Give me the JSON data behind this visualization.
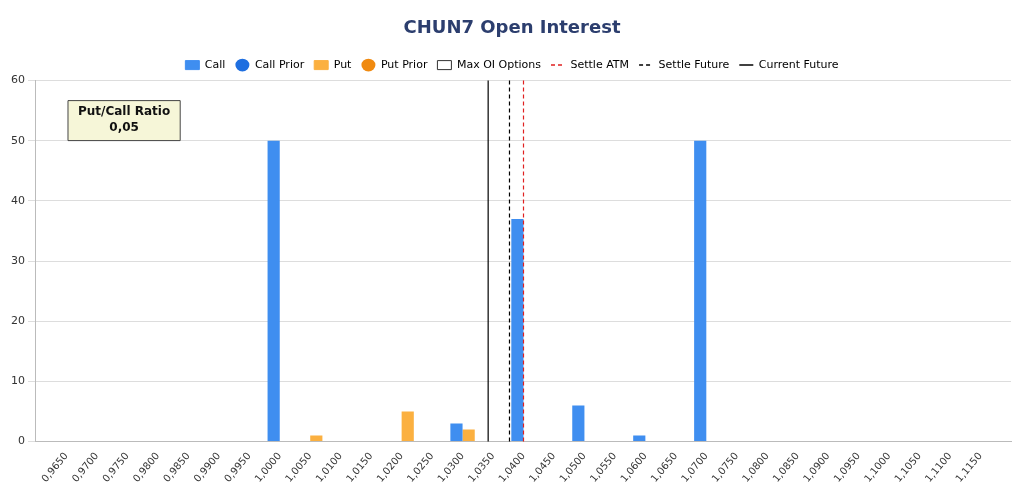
{
  "chart_data": {
    "type": "bar",
    "title": "CHUN7 Open Interest",
    "x": [
      0.965,
      0.97,
      0.975,
      0.98,
      0.985,
      0.99,
      0.995,
      1.0,
      1.005,
      1.01,
      1.015,
      1.02,
      1.025,
      1.03,
      1.035,
      1.04,
      1.045,
      1.05,
      1.055,
      1.06,
      1.065,
      1.07,
      1.075,
      1.08,
      1.085,
      1.09,
      1.095,
      1.1,
      1.105,
      1.11,
      1.115
    ],
    "series": [
      {
        "name": "Call",
        "color": "#3f8ef0",
        "values": [
          0,
          0,
          0,
          0,
          0,
          0,
          0,
          50,
          0,
          0,
          0,
          0,
          0,
          3,
          0,
          37,
          0,
          6,
          0,
          1,
          0,
          50,
          0,
          0,
          0,
          0,
          0,
          0,
          0,
          0,
          0
        ]
      },
      {
        "name": "Call Prior",
        "type": "scatter",
        "color": "#1f6fe0",
        "values": [
          null,
          null,
          null,
          null,
          null,
          null,
          null,
          null,
          null,
          null,
          null,
          null,
          null,
          null,
          null,
          null,
          null,
          null,
          null,
          null,
          null,
          null,
          null,
          null,
          null,
          null,
          null,
          null,
          null,
          null,
          null
        ]
      },
      {
        "name": "Put",
        "color": "#fbb040",
        "values": [
          0,
          0,
          0,
          0,
          0,
          0,
          0,
          0,
          1,
          0,
          0,
          5,
          0,
          2,
          0,
          0,
          0,
          0,
          0,
          0,
          0,
          0,
          0,
          0,
          0,
          0,
          0,
          0,
          0,
          0,
          0
        ]
      },
      {
        "name": "Put Prior",
        "type": "scatter",
        "color": "#f08a10",
        "values": [
          null,
          null,
          null,
          null,
          null,
          null,
          null,
          null,
          null,
          null,
          null,
          null,
          null,
          null,
          null,
          null,
          null,
          null,
          null,
          null,
          null,
          null,
          null,
          null,
          null,
          null,
          null,
          null,
          null,
          null,
          null
        ]
      },
      {
        "name": "Max OI Options",
        "color": "#ffffff",
        "values": [
          null,
          null,
          null,
          null,
          null,
          null,
          null,
          null,
          null,
          null,
          null,
          null,
          null,
          null,
          null,
          null,
          null,
          null,
          null,
          null,
          null,
          null,
          null,
          null,
          null,
          null,
          null,
          null,
          null,
          null,
          null
        ]
      }
    ],
    "ref_lines": [
      {
        "axis": "x",
        "value": 1.04,
        "label": "Settle ATM",
        "color": "#e02020",
        "line_style": "dashed"
      },
      {
        "axis": "x",
        "value": 1.0377,
        "label": "Settle Future",
        "color": "#000000",
        "line_style": "dashed"
      },
      {
        "axis": "x",
        "value": 1.0342,
        "label": "Current Future",
        "color": "#000000",
        "line_style": "solid"
      }
    ],
    "xlim": [
      0.96,
      1.12
    ],
    "xticks": [
      {
        "value": 0.965,
        "label": "0,9650"
      },
      {
        "value": 0.97,
        "label": "0,9700"
      },
      {
        "value": 0.975,
        "label": "0,9750"
      },
      {
        "value": 0.98,
        "label": "0,9800"
      },
      {
        "value": 0.985,
        "label": "0,9850"
      },
      {
        "value": 0.99,
        "label": "0,9900"
      },
      {
        "value": 0.995,
        "label": "0,9950"
      },
      {
        "value": 1.0,
        "label": "1,0000"
      },
      {
        "value": 1.005,
        "label": "1,0050"
      },
      {
        "value": 1.01,
        "label": "1,0100"
      },
      {
        "value": 1.015,
        "label": "1,0150"
      },
      {
        "value": 1.02,
        "label": "1,0200"
      },
      {
        "value": 1.025,
        "label": "1,0250"
      },
      {
        "value": 1.03,
        "label": "1,0300"
      },
      {
        "value": 1.035,
        "label": "1,0350"
      },
      {
        "value": 1.04,
        "label": "1,0400"
      },
      {
        "value": 1.045,
        "label": "1,0450"
      },
      {
        "value": 1.05,
        "label": "1,0500"
      },
      {
        "value": 1.055,
        "label": "1,0550"
      },
      {
        "value": 1.06,
        "label": "1,0600"
      },
      {
        "value": 1.065,
        "label": "1,0650"
      },
      {
        "value": 1.07,
        "label": "1,0700"
      },
      {
        "value": 1.075,
        "label": "1,0750"
      },
      {
        "value": 1.08,
        "label": "1,0800"
      },
      {
        "value": 1.085,
        "label": "1,0850"
      },
      {
        "value": 1.09,
        "label": "1,0900"
      },
      {
        "value": 1.095,
        "label": "1,0950"
      },
      {
        "value": 1.1,
        "label": "1,1000"
      },
      {
        "value": 1.105,
        "label": "1,1050"
      },
      {
        "value": 1.11,
        "label": "1,1100"
      },
      {
        "value": 1.115,
        "label": "1,1150"
      }
    ],
    "ylim": [
      0,
      60
    ],
    "yticks": [
      0,
      10,
      20,
      30,
      40,
      50,
      60
    ],
    "grid": "y",
    "legend": "top",
    "marker": "circle",
    "annotations": [
      "Put/Call Ratio\n0,05"
    ]
  }
}
